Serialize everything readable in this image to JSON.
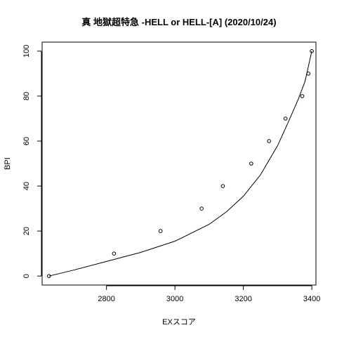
{
  "chart_data": {
    "type": "scatter",
    "title": "真 地獄超特急 -HELL or HELL-[A] (2020/10/24)",
    "xlabel": "EXスコア",
    "ylabel": "BPI",
    "xlim": [
      2612,
      3412
    ],
    "ylim": [
      -4,
      104
    ],
    "x_ticks": [
      2800,
      3000,
      3200,
      3400
    ],
    "y_ticks": [
      0,
      20,
      40,
      60,
      80,
      100
    ],
    "grid": false,
    "legend": "none",
    "points": {
      "x": [
        2632,
        2822,
        2958,
        3078,
        3140,
        3223,
        3275,
        3323,
        3372,
        3390,
        3400
      ],
      "y": [
        0,
        10,
        20,
        30,
        40,
        50,
        60,
        70,
        80,
        90,
        100
      ]
    },
    "curve": {
      "x": [
        2632,
        2700,
        2800,
        2900,
        3000,
        3100,
        3150,
        3200,
        3250,
        3300,
        3330,
        3360,
        3380,
        3400
      ],
      "y": [
        0,
        2.5,
        6.5,
        10.5,
        15.5,
        23,
        28.5,
        35.5,
        45,
        58,
        68,
        78.5,
        86.5,
        100
      ]
    }
  }
}
